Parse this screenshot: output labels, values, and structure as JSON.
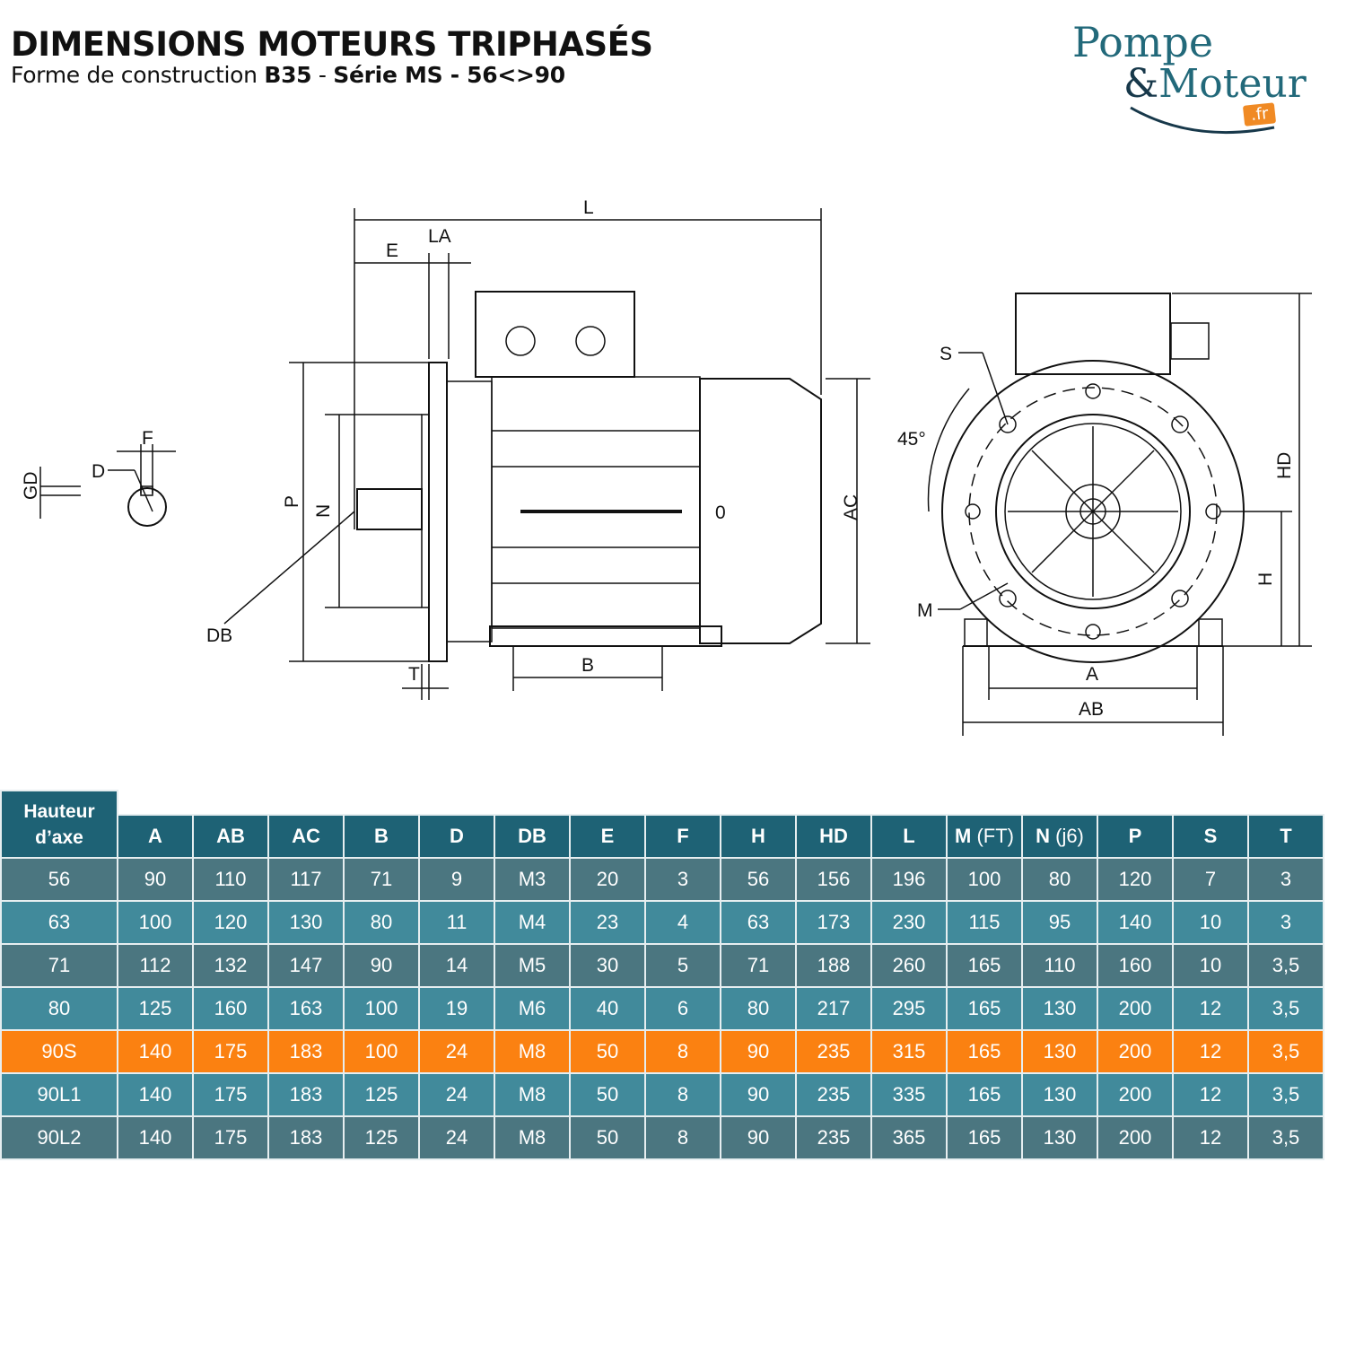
{
  "header": {
    "title": "DIMENSIONS MOTEURS TRIPHASÉS",
    "subtitle_prefix": "Forme de construction ",
    "subtitle_bold1": "B35",
    "subtitle_mid": " - ",
    "subtitle_bold2": "Série MS - 56<>90"
  },
  "logo": {
    "line1": "Pompe",
    "amp": "&",
    "line2": "Moteur",
    "tld": ".fr"
  },
  "drawing_labels": {
    "L": "L",
    "LA": "LA",
    "E": "E",
    "P": "P",
    "N": "N",
    "DB": "DB",
    "T": "T",
    "B": "B",
    "AC": "AC",
    "O": "0",
    "F": "F",
    "D": "D",
    "GD": "GD",
    "S": "S",
    "angle": "45°",
    "M": "M",
    "HD": "HD",
    "H": "H",
    "A": "A",
    "AB": "AB"
  },
  "table": {
    "first_header": [
      "Hauteur",
      "d’axe"
    ],
    "columns": [
      "A",
      "AB",
      "AC",
      "B",
      "D",
      "DB",
      "E",
      "F",
      "H",
      "HD",
      "L",
      "M",
      "N",
      "P",
      "S",
      "T"
    ],
    "column_suffix": {
      "M": " (FT)",
      "N": " (j6)"
    },
    "highlight_color": "#fb8111",
    "rows": [
      [
        "56",
        "90",
        "110",
        "117",
        "71",
        "9",
        "M3",
        "20",
        "3",
        "56",
        "156",
        "196",
        "100",
        "80",
        "120",
        "7",
        "3"
      ],
      [
        "63",
        "100",
        "120",
        "130",
        "80",
        "11",
        "M4",
        "23",
        "4",
        "63",
        "173",
        "230",
        "115",
        "95",
        "140",
        "10",
        "3"
      ],
      [
        "71",
        "112",
        "132",
        "147",
        "90",
        "14",
        "M5",
        "30",
        "5",
        "71",
        "188",
        "260",
        "165",
        "110",
        "160",
        "10",
        "3,5"
      ],
      [
        "80",
        "125",
        "160",
        "163",
        "100",
        "19",
        "M6",
        "40",
        "6",
        "80",
        "217",
        "295",
        "165",
        "130",
        "200",
        "12",
        "3,5"
      ],
      [
        "90S",
        "140",
        "175",
        "183",
        "100",
        "24",
        "M8",
        "50",
        "8",
        "90",
        "235",
        "315",
        "165",
        "130",
        "200",
        "12",
        "3,5"
      ],
      [
        "90L1",
        "140",
        "175",
        "183",
        "125",
        "24",
        "M8",
        "50",
        "8",
        "90",
        "235",
        "335",
        "165",
        "130",
        "200",
        "12",
        "3,5"
      ],
      [
        "90L2",
        "140",
        "175",
        "183",
        "125",
        "24",
        "M8",
        "50",
        "8",
        "90",
        "235",
        "365",
        "165",
        "130",
        "200",
        "12",
        "3,5"
      ]
    ],
    "highlighted_row": "90S"
  }
}
